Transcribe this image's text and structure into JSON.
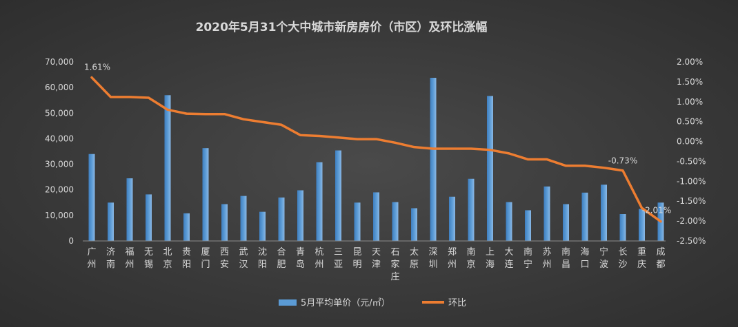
{
  "chart_data": {
    "type": "bar+line",
    "title": "2020年5月31个大中城市新房房价（市区）及环比涨幅",
    "categories": [
      "广州",
      "济南",
      "福州",
      "无锡",
      "北京",
      "贵阳",
      "厦门",
      "西安",
      "武汉",
      "沈阳",
      "合肥",
      "青岛",
      "杭州",
      "三亚",
      "昆明",
      "天津",
      "石家庄",
      "太原",
      "深圳",
      "郑州",
      "南京",
      "上海",
      "大连",
      "南宁",
      "苏州",
      "南昌",
      "海口",
      "宁波",
      "长沙",
      "重庆",
      "成都"
    ],
    "series": [
      {
        "name": "5月平均单价（元/㎡）",
        "type": "bar",
        "axis": "left",
        "color": "#5b9bd5",
        "values": [
          34000,
          15000,
          24500,
          18200,
          57000,
          10800,
          36300,
          14400,
          17600,
          11400,
          17000,
          19800,
          30800,
          35400,
          15000,
          19000,
          15200,
          12800,
          63800,
          17300,
          24300,
          56700,
          15200,
          12000,
          21300,
          14400,
          18900,
          22000,
          10500,
          12500,
          15000
        ]
      },
      {
        "name": "环比",
        "type": "line",
        "axis": "right",
        "color": "#ed7d31",
        "values": [
          1.61,
          1.12,
          1.12,
          1.1,
          0.8,
          0.7,
          0.69,
          0.69,
          0.56,
          0.49,
          0.42,
          0.16,
          0.14,
          0.1,
          0.06,
          0.06,
          -0.03,
          -0.14,
          -0.18,
          -0.18,
          -0.18,
          -0.21,
          -0.3,
          -0.45,
          -0.45,
          -0.61,
          -0.61,
          -0.66,
          -0.73,
          -1.67,
          -2.01
        ]
      }
    ],
    "y_left": {
      "min": 0,
      "max": 70000,
      "step": 10000,
      "ticks": [
        "0",
        "10,000",
        "20,000",
        "30,000",
        "40,000",
        "50,000",
        "60,000",
        "70,000"
      ]
    },
    "y_right": {
      "min": -2.5,
      "max": 2.0,
      "step": 0.5,
      "ticks": [
        "-2.50%",
        "-2.00%",
        "-1.50%",
        "-1.00%",
        "-0.50%",
        "0.00%",
        "0.50%",
        "1.00%",
        "1.50%",
        "2.00%"
      ]
    },
    "data_labels": [
      {
        "index": 0,
        "series": 1,
        "text": "1.61%"
      },
      {
        "index": 28,
        "series": 1,
        "text": "-0.73%"
      },
      {
        "index": 30,
        "series": 1,
        "text": "-2.01%"
      }
    ],
    "legend": {
      "placement": "bottom"
    },
    "grid": false
  }
}
